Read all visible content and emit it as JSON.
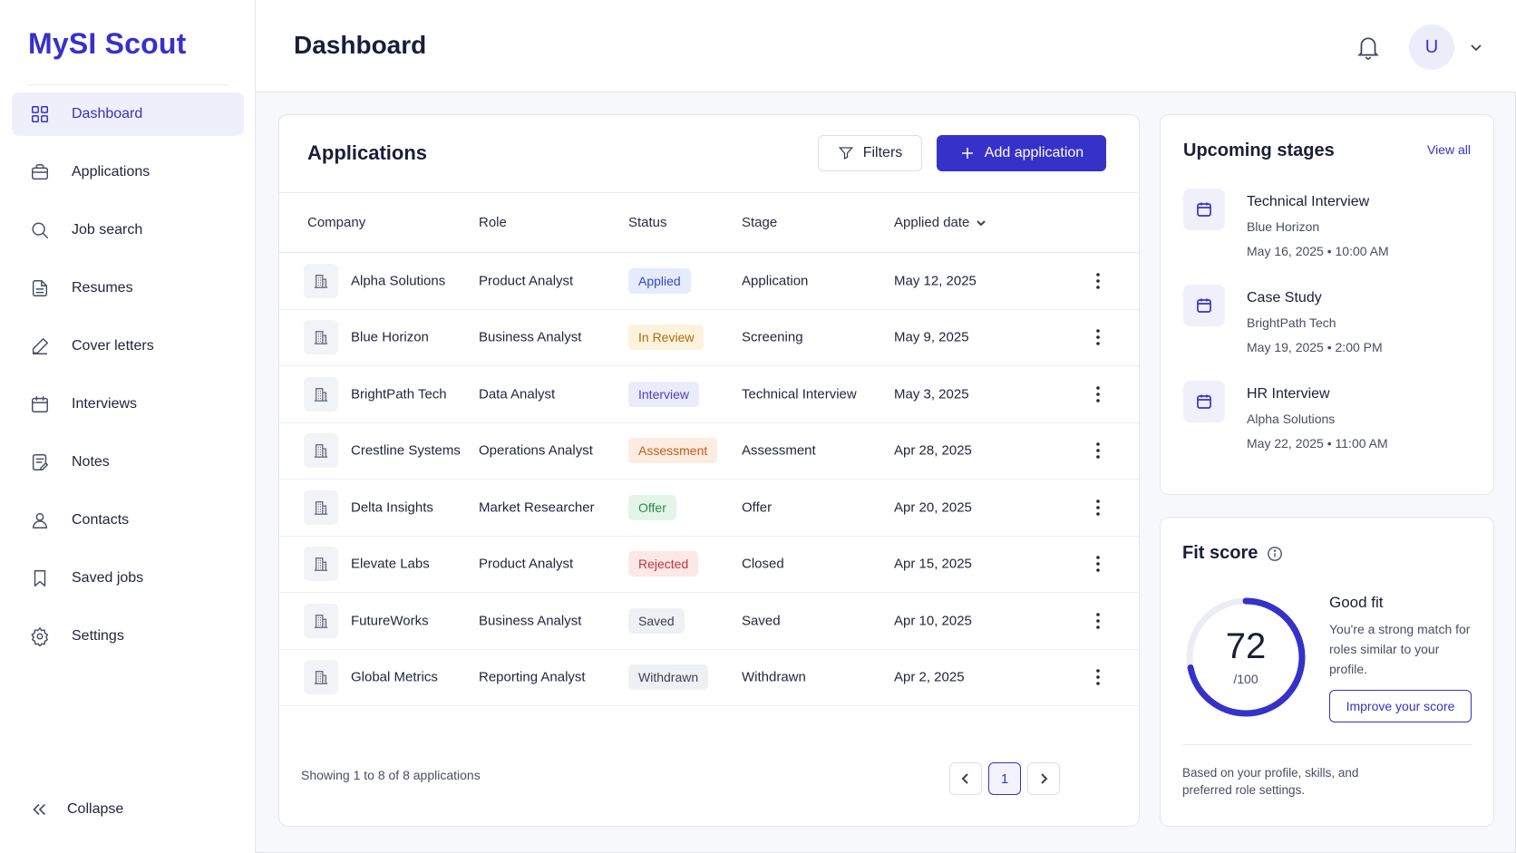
{
  "app": {
    "name": "MySI Scout"
  },
  "sidebar": {
    "items": [
      {
        "label": "Dashboard",
        "icon": "dashboard-icon",
        "active": true
      },
      {
        "label": "Applications",
        "icon": "briefcase-icon"
      },
      {
        "label": "Job search",
        "icon": "search-icon"
      },
      {
        "label": "Resumes",
        "icon": "document-icon"
      },
      {
        "label": "Cover letters",
        "icon": "pen-icon"
      },
      {
        "label": "Interviews",
        "icon": "calendar-icon"
      },
      {
        "label": "Notes",
        "icon": "note-icon"
      },
      {
        "label": "Contacts",
        "icon": "person-icon"
      },
      {
        "label": "Saved jobs",
        "icon": "bookmark-icon"
      },
      {
        "label": "Settings",
        "icon": "gear-icon"
      }
    ],
    "collapse_label": "Collapse"
  },
  "header": {
    "title": "Dashboard",
    "avatar_initial": "U"
  },
  "applications": {
    "title": "Applications",
    "filters_label": "Filters",
    "add_label": "Add application",
    "columns": {
      "company": "Company",
      "role": "Role",
      "status": "Status",
      "stage": "Stage",
      "applied": "Applied date"
    },
    "rows": [
      {
        "company": "Alpha Solutions",
        "role": "Product Analyst",
        "status": "Applied",
        "stage": "Application",
        "date": "May 12, 2025"
      },
      {
        "company": "Blue Horizon",
        "role": "Business Analyst",
        "status": "In Review",
        "stage": "Screening",
        "date": "May 9, 2025"
      },
      {
        "company": "BrightPath Tech",
        "role": "Data Analyst",
        "status": "Interview",
        "stage": "Technical Interview",
        "date": "May 3, 2025"
      },
      {
        "company": "Crestline Systems",
        "role": "Operations Analyst",
        "status": "Assessment",
        "stage": "Assessment",
        "date": "Apr 28, 2025"
      },
      {
        "company": "Delta Insights",
        "role": "Market Researcher",
        "status": "Offer",
        "stage": "Offer",
        "date": "Apr 20, 2025"
      },
      {
        "company": "Elevate Labs",
        "role": "Product Analyst",
        "status": "Rejected",
        "stage": "Closed",
        "date": "Apr 15, 2025"
      },
      {
        "company": "FutureWorks",
        "role": "Business Analyst",
        "status": "Saved",
        "stage": "Saved",
        "date": "Apr 10, 2025"
      },
      {
        "company": "Global Metrics",
        "role": "Reporting Analyst",
        "status": "Withdrawn",
        "stage": "Withdrawn",
        "date": "Apr 2, 2025"
      }
    ],
    "status_colors": {
      "Applied": {
        "bg": "#e6ecfd",
        "fg": "#3448c9"
      },
      "In Review": {
        "bg": "#fdf3dc",
        "fg": "#b06a0b"
      },
      "Interview": {
        "bg": "#ebebfb",
        "fg": "#4a3fcb"
      },
      "Assessment": {
        "bg": "#fdece2",
        "fg": "#c25a1c"
      },
      "Offer": {
        "bg": "#e3f5e8",
        "fg": "#2b8a48"
      },
      "Rejected": {
        "bg": "#fde7e7",
        "fg": "#c4343a"
      },
      "Saved": {
        "bg": "#eef0f3",
        "fg": "#3d4057"
      },
      "Withdrawn": {
        "bg": "#eef0f3",
        "fg": "#3d4057"
      }
    },
    "footer": "Showing 1 to 8 of 8 applications",
    "current_page": "1"
  },
  "upcoming": {
    "title": "Upcoming stages",
    "view_all": "View all",
    "items": [
      {
        "name": "Technical Interview",
        "company": "Blue Horizon",
        "datetime": "May 16, 2025 • 10:00 AM"
      },
      {
        "name": "Case Study",
        "company": "BrightPath Tech",
        "datetime": "May 19, 2025 • 2:00 PM"
      },
      {
        "name": "HR Interview",
        "company": "Alpha Solutions",
        "datetime": "May 22, 2025 • 11:00 AM"
      }
    ]
  },
  "fit": {
    "title": "Fit score",
    "score": "72",
    "max": "/100",
    "score_fraction": 0.72,
    "label": "Good fit",
    "description": "You're a strong match for roles similar to your profile.",
    "improve_label": "Improve your score",
    "note": "Based on your profile, skills, and preferred role settings."
  },
  "colors": {
    "accent": "#3631c9"
  }
}
